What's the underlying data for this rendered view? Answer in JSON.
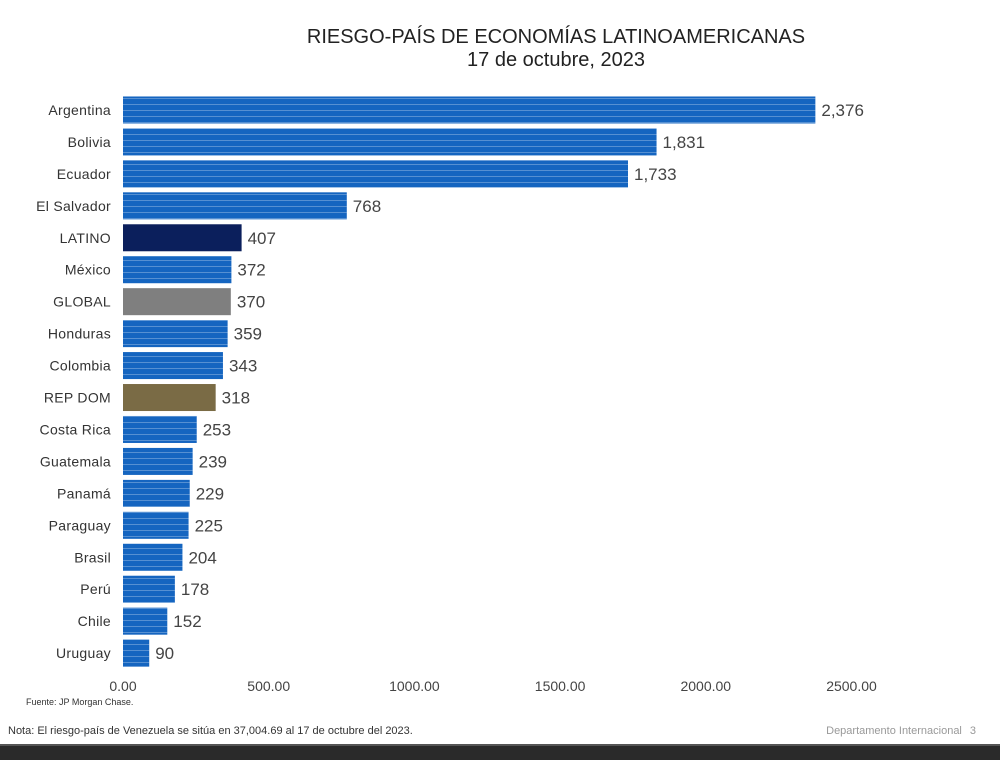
{
  "chart_data": {
    "type": "bar",
    "orientation": "horizontal",
    "title": "RIESGO-PAÍS DE ECONOMÍAS LATINOAMERICANAS",
    "subtitle": "17 de octubre, 2023",
    "categories": [
      "Argentina",
      "Bolivia",
      "Ecuador",
      "El Salvador",
      "LATINO",
      "México",
      "GLOBAL",
      "Honduras",
      "Colombia",
      "REP DOM",
      "Costa Rica",
      "Guatemala",
      "Panamá",
      "Paraguay",
      "Brasil",
      "Perú",
      "Chile",
      "Uruguay"
    ],
    "values": [
      2376,
      1831,
      1733,
      768,
      407,
      372,
      370,
      359,
      343,
      318,
      253,
      239,
      229,
      225,
      204,
      178,
      152,
      90
    ],
    "value_labels": [
      "2,376",
      "1,831",
      "1,733",
      "768",
      "407",
      "372",
      "370",
      "359",
      "343",
      "318",
      "253",
      "239",
      "229",
      "225",
      "204",
      "178",
      "152",
      "90"
    ],
    "bar_colors": [
      "#1565c0",
      "#1565c0",
      "#1565c0",
      "#1565c0",
      "#0b1f5c",
      "#1565c0",
      "#7f7f7f",
      "#1565c0",
      "#1565c0",
      "#7a6b45",
      "#1565c0",
      "#1565c0",
      "#1565c0",
      "#1565c0",
      "#1565c0",
      "#1565c0",
      "#1565c0",
      "#1565c0"
    ],
    "x_ticks": [
      "0.00",
      "500.00",
      "1000.00",
      "1500.00",
      "2000.00",
      "2500.00"
    ],
    "xlim": [
      0,
      2500
    ],
    "grid": false
  },
  "source": "Fuente: JP Morgan Chase.",
  "note": "Nota: El riesgo-país de Venezuela se sitúa en 37,004.69 al 17 de octubre del 2023.",
  "footer": {
    "department": "Departamento Internacional",
    "page": "3"
  }
}
